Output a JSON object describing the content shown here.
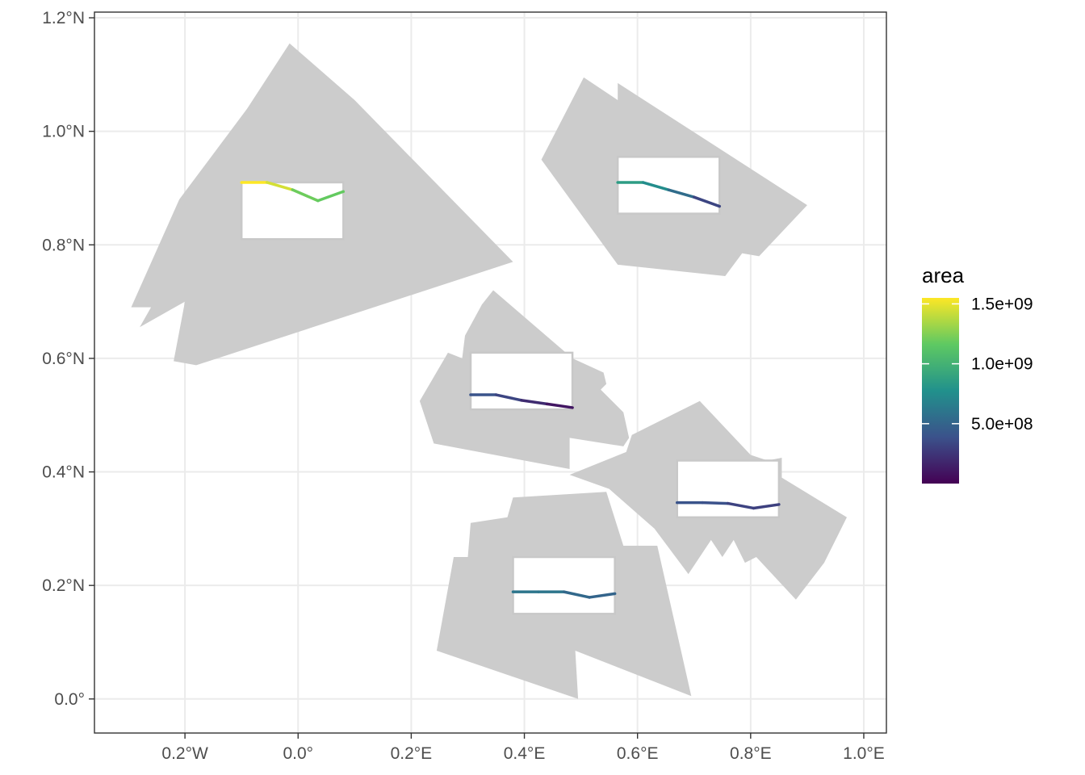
{
  "map": {
    "x_ticks": [
      "0.2°W",
      "0.0°",
      "0.2°E",
      "0.4°E",
      "0.6°E",
      "0.8°E",
      "1.0°E"
    ],
    "y_ticks": [
      "0.0°",
      "0.2°N",
      "0.4°N",
      "0.6°N",
      "0.8°N",
      "1.0°N",
      "1.2°N"
    ],
    "x_tick_values": [
      -0.2,
      0.0,
      0.2,
      0.4,
      0.6,
      0.8,
      1.0
    ],
    "y_tick_values": [
      0.0,
      0.2,
      0.4,
      0.6,
      0.8,
      1.0,
      1.2
    ],
    "xlim": [
      -0.36,
      1.04
    ],
    "ylim": [
      -0.06,
      1.21
    ],
    "grid": true,
    "colors": {
      "land": "#cccccc",
      "grid": "#ebebeb",
      "panel_border": "#333333",
      "inset_border": "#c8c8c8"
    }
  },
  "legend": {
    "title": "area",
    "labels": [
      "1.5e+09",
      "1.0e+09",
      "5.0e+08"
    ],
    "values": [
      1500000000,
      1000000000,
      500000000
    ],
    "range": [
      0,
      1550000000
    ],
    "gradient": [
      "#440154",
      "#3b528b",
      "#21918c",
      "#5ec962",
      "#fde725"
    ],
    "placement": "right"
  },
  "chart_data": {
    "type": "map",
    "regions": [
      {
        "polygon": [
          [
            -0.015,
            1.155
          ],
          [
            0.1,
            1.055
          ],
          [
            0.38,
            0.77
          ],
          [
            -0.18,
            0.588
          ],
          [
            -0.22,
            0.595
          ],
          [
            -0.2,
            0.7
          ],
          [
            -0.28,
            0.655
          ],
          [
            -0.26,
            0.69
          ],
          [
            -0.295,
            0.69
          ],
          [
            -0.21,
            0.88
          ],
          [
            -0.09,
            1.04
          ]
        ],
        "inset": {
          "bbox": [
            -0.1,
            0.81,
            0.08,
            0.91
          ],
          "series": [
            [
              0,
              1550000000.0
            ],
            [
              1,
              1550000000.0
            ],
            [
              2,
              1350000000.0
            ],
            [
              3,
              1050000000.0
            ],
            [
              4,
              1300000000.0
            ]
          ]
        }
      },
      {
        "polygon": [
          [
            0.505,
            1.095
          ],
          [
            0.565,
            1.055
          ],
          [
            0.565,
            1.085
          ],
          [
            0.9,
            0.87
          ],
          [
            0.815,
            0.78
          ],
          [
            0.785,
            0.785
          ],
          [
            0.755,
            0.745
          ],
          [
            0.565,
            0.765
          ],
          [
            0.43,
            0.95
          ]
        ],
        "inset": {
          "bbox": [
            0.565,
            0.855,
            0.745,
            0.955
          ],
          "series": [
            [
              0,
              850000000.0
            ],
            [
              1,
              850000000.0
            ],
            [
              2,
              650000000.0
            ],
            [
              3,
              450000000.0
            ],
            [
              4,
              200000000.0
            ]
          ]
        }
      },
      {
        "polygon": [
          [
            0.345,
            0.72
          ],
          [
            0.485,
            0.6
          ],
          [
            0.54,
            0.575
          ],
          [
            0.545,
            0.555
          ],
          [
            0.535,
            0.545
          ],
          [
            0.575,
            0.505
          ],
          [
            0.585,
            0.46
          ],
          [
            0.575,
            0.445
          ],
          [
            0.48,
            0.46
          ],
          [
            0.48,
            0.405
          ],
          [
            0.24,
            0.45
          ],
          [
            0.215,
            0.525
          ],
          [
            0.265,
            0.61
          ],
          [
            0.29,
            0.6
          ],
          [
            0.295,
            0.64
          ],
          [
            0.325,
            0.695
          ]
        ],
        "inset": {
          "bbox": [
            0.305,
            0.51,
            0.485,
            0.61
          ],
          "series": [
            [
              0,
              400000000.0
            ],
            [
              1,
              400000000.0
            ],
            [
              2,
              250000000.0
            ],
            [
              3,
              150000000.0
            ],
            [
              4,
              50000000.0
            ]
          ]
        }
      },
      {
        "polygon": [
          [
            0.59,
            0.465
          ],
          [
            0.71,
            0.525
          ],
          [
            0.8,
            0.43
          ],
          [
            0.83,
            0.42
          ],
          [
            0.855,
            0.425
          ],
          [
            0.855,
            0.39
          ],
          [
            0.97,
            0.32
          ],
          [
            0.93,
            0.24
          ],
          [
            0.88,
            0.175
          ],
          [
            0.81,
            0.25
          ],
          [
            0.79,
            0.24
          ],
          [
            0.77,
            0.28
          ],
          [
            0.75,
            0.25
          ],
          [
            0.73,
            0.28
          ],
          [
            0.69,
            0.22
          ],
          [
            0.63,
            0.3
          ],
          [
            0.55,
            0.37
          ],
          [
            0.48,
            0.395
          ],
          [
            0.58,
            0.435
          ]
        ],
        "inset": {
          "bbox": [
            0.67,
            0.32,
            0.85,
            0.42
          ],
          "series": [
            [
              0,
              400000000.0
            ],
            [
              1,
              400000000.0
            ],
            [
              2,
              380000000.0
            ],
            [
              3,
              250000000.0
            ],
            [
              4,
              350000000.0
            ]
          ]
        }
      },
      {
        "polygon": [
          [
            0.38,
            0.355
          ],
          [
            0.545,
            0.365
          ],
          [
            0.545,
            0.365
          ],
          [
            0.575,
            0.27
          ],
          [
            0.635,
            0.27
          ],
          [
            0.695,
            0.005
          ],
          [
            0.49,
            0.085
          ],
          [
            0.495,
            0.0
          ],
          [
            0.245,
            0.085
          ],
          [
            0.275,
            0.25
          ],
          [
            0.3,
            0.25
          ],
          [
            0.305,
            0.31
          ],
          [
            0.37,
            0.32
          ]
        ],
        "inset": {
          "bbox": [
            0.38,
            0.15,
            0.56,
            0.25
          ],
          "series": [
            [
              0,
              600000000.0
            ],
            [
              1,
              600000000.0
            ],
            [
              2,
              600000000.0
            ],
            [
              3,
              450000000.0
            ],
            [
              4,
              550000000.0
            ]
          ]
        }
      }
    ]
  }
}
